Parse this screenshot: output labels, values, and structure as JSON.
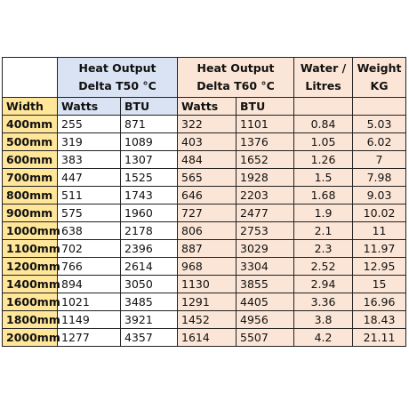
{
  "header": {
    "groups": [
      {
        "lines": [
          "Heat Output",
          "Delta T50 °C"
        ]
      },
      {
        "lines": [
          "Heat Output",
          "Delta T60 °C"
        ]
      },
      {
        "lines": [
          "Water /",
          "Litres"
        ]
      },
      {
        "lines": [
          "Weight",
          "KG"
        ]
      }
    ]
  },
  "subheader": {
    "label": "Width",
    "columns": [
      "Watts",
      "BTU",
      "Watts",
      "BTU"
    ]
  },
  "table": {
    "rows": [
      [
        "400mm",
        255,
        871,
        322,
        1101,
        0.84,
        5.03
      ],
      [
        "500mm",
        319,
        1089,
        403,
        1376,
        1.05,
        6.02
      ],
      [
        "600mm",
        383,
        1307,
        484,
        1652,
        1.26,
        7
      ],
      [
        "700mm",
        447,
        1525,
        565,
        1928,
        1.5,
        7.98
      ],
      [
        "800mm",
        511,
        1743,
        646,
        2203,
        1.68,
        9.03
      ],
      [
        "900mm",
        575,
        1960,
        727,
        2477,
        1.9,
        10.02
      ],
      [
        "1000mm",
        638,
        2178,
        806,
        2753,
        2.1,
        11
      ],
      [
        "1100mm",
        702,
        2396,
        887,
        3029,
        2.3,
        11.97
      ],
      [
        "1200mm",
        766,
        2614,
        968,
        3304,
        2.52,
        12.95
      ],
      [
        "1400mm",
        894,
        3050,
        1130,
        3855,
        2.94,
        15
      ],
      [
        "1600mm",
        1021,
        3485,
        1291,
        4405,
        3.36,
        16.96
      ],
      [
        "1800mm",
        1149,
        3921,
        1452,
        4956,
        3.8,
        18.43
      ],
      [
        "2000mm",
        1277,
        4357,
        1614,
        5507,
        4.2,
        21.11
      ]
    ]
  }
}
